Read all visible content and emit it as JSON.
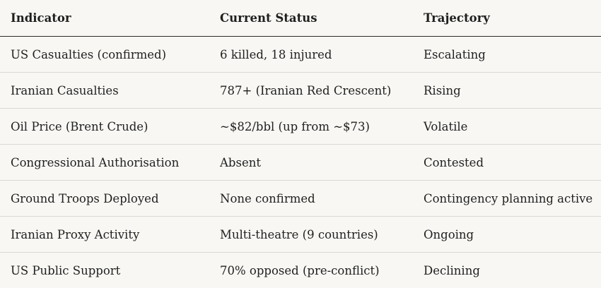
{
  "table": {
    "headers": [
      "Indicator",
      "Current Status",
      "Trajectory"
    ],
    "rows": [
      [
        "US Casualties (confirmed)",
        "6 killed, 18 injured",
        "Escalating"
      ],
      [
        "Iranian Casualties",
        "787+ (Iranian Red Crescent)",
        "Rising"
      ],
      [
        "Oil Price (Brent Crude)",
        "~$82/bbl (up from ~$73)",
        "Volatile"
      ],
      [
        "Congressional Authorisation",
        "Absent",
        "Contested"
      ],
      [
        "Ground Troops Deployed",
        "None confirmed",
        "Contingency planning active"
      ],
      [
        "Iranian Proxy Activity",
        "Multi-theatre (9 countries)",
        "Ongoing"
      ],
      [
        "US Public Support",
        "70% opposed (pre-conflict)",
        "Declining"
      ]
    ]
  }
}
